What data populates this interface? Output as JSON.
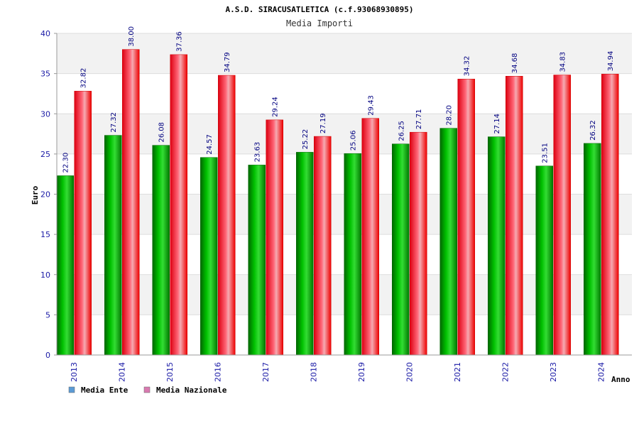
{
  "chart_data": {
    "type": "bar",
    "title": "A.S.D. SIRACUSATLETICA (c.f.93068930895)",
    "subtitle": "Media Importi",
    "xlabel": "Anno",
    "ylabel": "Euro",
    "ylim": [
      0,
      40
    ],
    "yticks": [
      "0",
      "5",
      "10",
      "15",
      "20",
      "25",
      "30",
      "35",
      "40"
    ],
    "categories": [
      "2013",
      "2014",
      "2015",
      "2016",
      "2017",
      "2018",
      "2019",
      "2020",
      "2021",
      "2022",
      "2023",
      "2024"
    ],
    "series": [
      {
        "name": "Media Ente",
        "values": [
          22.3,
          27.32,
          26.08,
          24.57,
          23.63,
          25.22,
          25.06,
          26.25,
          28.2,
          27.14,
          23.51,
          26.32
        ],
        "labels": [
          "22.30",
          "27.32",
          "26.08",
          "24.57",
          "23.63",
          "25.22",
          "25.06",
          "26.25",
          "28.20",
          "27.14",
          "23.51",
          "26.32"
        ],
        "color": "#00b000"
      },
      {
        "name": "Media Nazionale",
        "values": [
          32.82,
          38.0,
          37.36,
          34.79,
          29.24,
          27.19,
          29.43,
          27.71,
          34.32,
          34.68,
          34.83,
          34.94
        ],
        "labels": [
          "32.82",
          "38.00",
          "37.36",
          "34.79",
          "29.24",
          "27.19",
          "29.43",
          "27.71",
          "34.32",
          "34.68",
          "34.83",
          "34.94"
        ],
        "color": "#ee1122"
      }
    ],
    "grid": true,
    "legend_position": "bottom-left",
    "legend": [
      {
        "label": "Media Ente",
        "color": "#5b9bd5"
      },
      {
        "label": "Media Nazionale",
        "color": "#d97ab0"
      }
    ]
  }
}
